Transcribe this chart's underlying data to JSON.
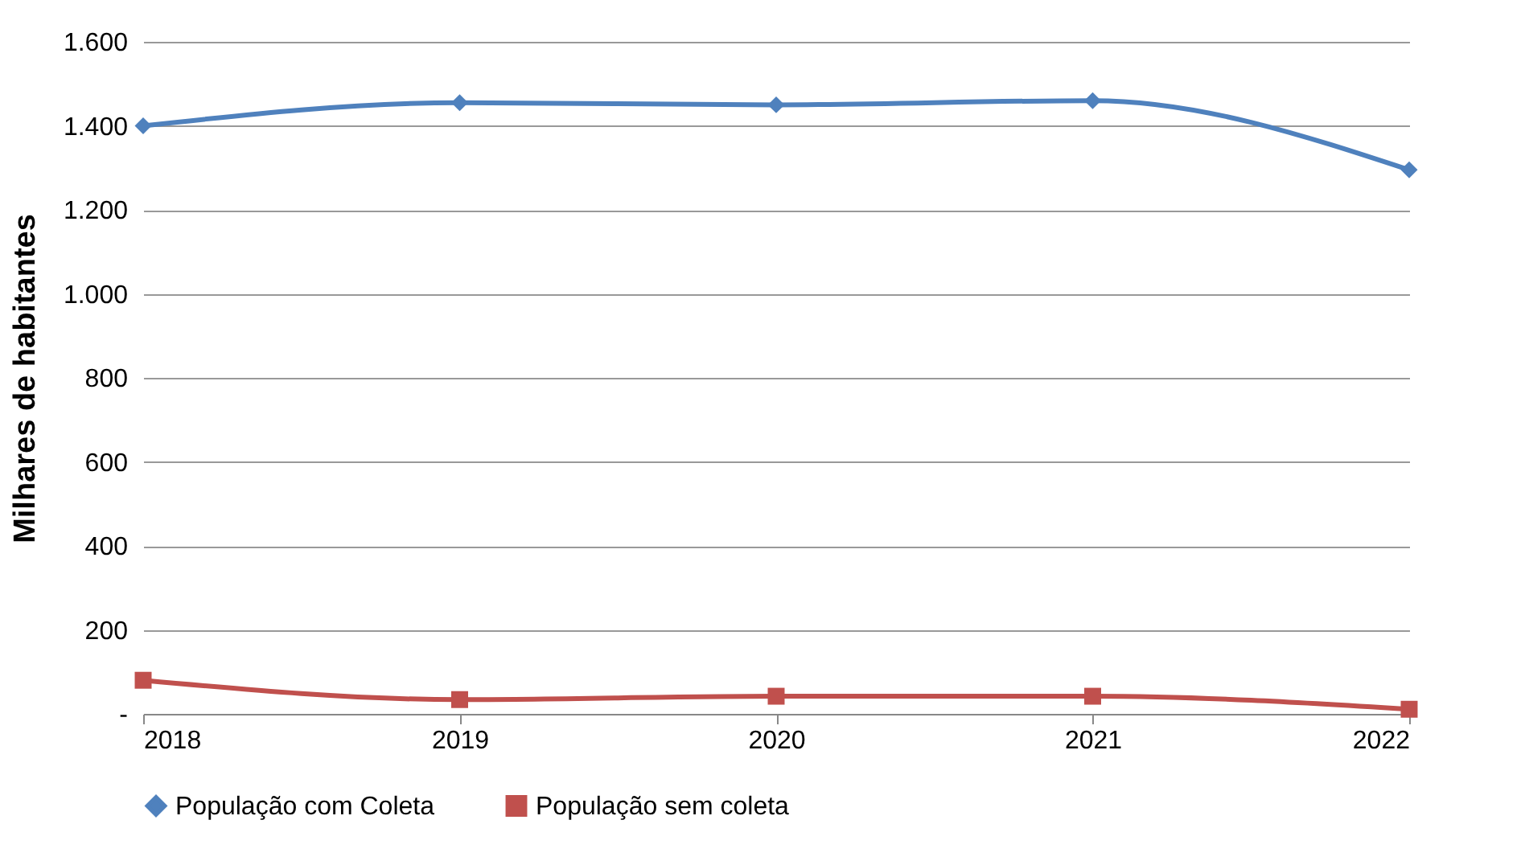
{
  "chart_data": {
    "type": "line",
    "ylabel": "Milhares de habitantes",
    "x": [
      2018,
      2019,
      2020,
      2021,
      2022
    ],
    "xlim": [
      2018,
      2022
    ],
    "xticks": [
      2018,
      2019,
      2020,
      2021,
      2022
    ],
    "ylim": [
      0,
      1600
    ],
    "yticks": [
      {
        "value": 0,
        "label": "-"
      },
      {
        "value": 200,
        "label": "200"
      },
      {
        "value": 400,
        "label": "400"
      },
      {
        "value": 600,
        "label": "600"
      },
      {
        "value": 800,
        "label": "800"
      },
      {
        "value": 1000,
        "label": "1.000"
      },
      {
        "value": 1200,
        "label": "1.200"
      },
      {
        "value": 1400,
        "label": "1.400"
      },
      {
        "value": 1600,
        "label": "1.600"
      }
    ],
    "grid": "y",
    "legend": "bottom",
    "series": [
      {
        "name": "População com Coleta",
        "color": "#4f81bd",
        "marker": "diamond",
        "values": [
          1400,
          1455,
          1450,
          1460,
          1295
        ]
      },
      {
        "name": "População sem coleta",
        "color": "#c0504d",
        "marker": "square",
        "values": [
          80,
          34,
          42,
          42,
          11
        ]
      }
    ]
  }
}
